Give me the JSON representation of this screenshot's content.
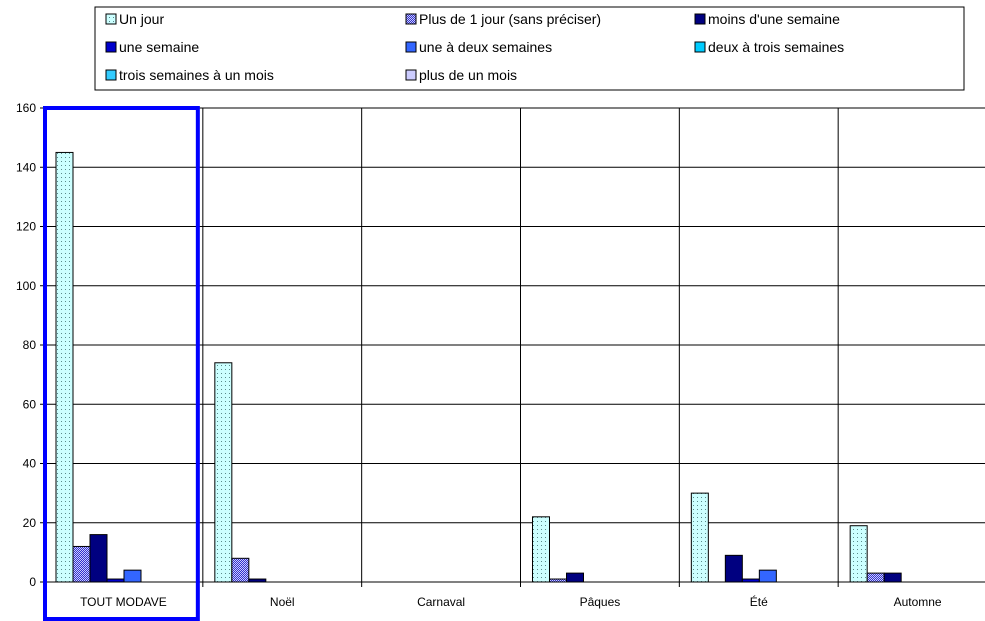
{
  "chart_data": {
    "type": "bar",
    "categories": [
      "TOUT MODAVE",
      "Noël",
      "Carnaval",
      "Pâques",
      "Été",
      "Automne"
    ],
    "series": [
      {
        "name": "Un jour",
        "values": [
          145,
          74,
          0,
          22,
          30,
          19
        ],
        "color": "#ccffff",
        "pattern": "dots"
      },
      {
        "name": "Plus de 1 jour (sans préciser)",
        "values": [
          12,
          8,
          0,
          1,
          0,
          3
        ],
        "color": "#3333cc",
        "pattern": "checker"
      },
      {
        "name": "moins d'une semaine",
        "values": [
          16,
          1,
          0,
          3,
          9,
          3
        ],
        "color": "#000080",
        "pattern": "solid"
      },
      {
        "name": "une semaine",
        "values": [
          1,
          0,
          0,
          0,
          1,
          0
        ],
        "color": "#0000cc",
        "pattern": "solid"
      },
      {
        "name": "une à deux semaines",
        "values": [
          4,
          0,
          0,
          0,
          4,
          0
        ],
        "color": "#3366ff",
        "pattern": "solid"
      },
      {
        "name": "deux à trois semaines",
        "values": [
          0,
          0,
          0,
          0,
          0,
          0
        ],
        "color": "#00ccff",
        "pattern": "solid"
      },
      {
        "name": "trois semaines à un mois",
        "values": [
          0,
          0,
          0,
          0,
          0,
          0
        ],
        "color": "#33ccff",
        "pattern": "solid"
      },
      {
        "name": "plus de un mois",
        "values": [
          0,
          0,
          0,
          0,
          0,
          0
        ],
        "color": "#ccccff",
        "pattern": "solid"
      }
    ],
    "y_ticks": [
      "0",
      "20",
      "40",
      "60",
      "80",
      "100",
      "120",
      "140",
      "160"
    ],
    "ylim": [
      0,
      160
    ],
    "grid": true,
    "legend_position": "top",
    "highlighted_category": "TOUT MODAVE",
    "highlight_color": "#0000ff"
  }
}
